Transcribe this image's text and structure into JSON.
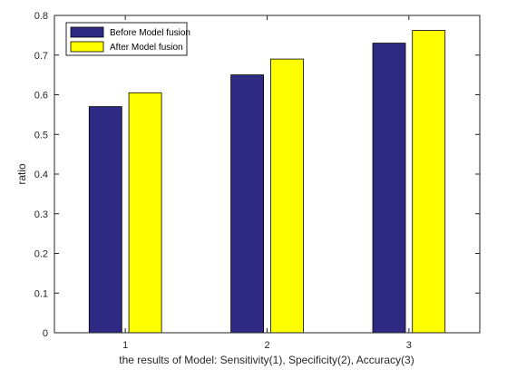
{
  "chart_data": {
    "type": "bar",
    "categories": [
      "1",
      "2",
      "3"
    ],
    "series": [
      {
        "name": "Before Model fusion",
        "color": "#2e2a84",
        "values": [
          0.57,
          0.65,
          0.73
        ]
      },
      {
        "name": "After Model fusion",
        "color": "#ffff00",
        "values": [
          0.605,
          0.69,
          0.762
        ]
      }
    ],
    "xlabel": "the results of Model: Sensitivity(1), Specificity(2), Accuracy(3)",
    "ylabel": "ratio",
    "ylim": [
      0,
      0.8
    ],
    "yticks": [
      "0",
      "0.1",
      "0.2",
      "0.3",
      "0.4",
      "0.5",
      "0.6",
      "0.7",
      "0.8"
    ],
    "grid": false,
    "legend_position": "top-left"
  }
}
